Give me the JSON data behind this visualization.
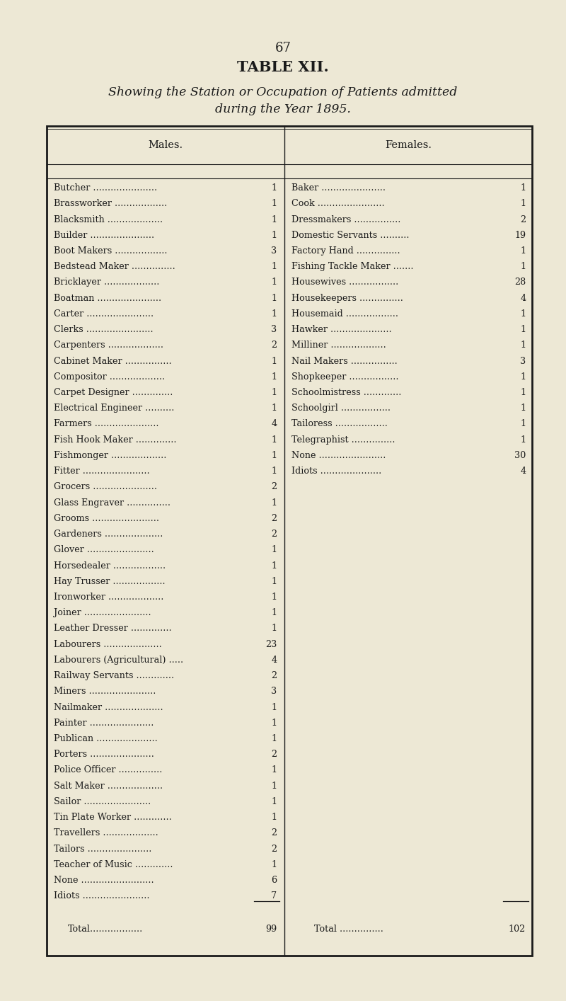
{
  "page_number": "67",
  "title": "TABLE XII.",
  "subtitle_line1": "Showing the Station or Occupation of Patients admitted",
  "subtitle_line2": "during the Year 1895.",
  "males_header": "Males.",
  "females_header": "Females.",
  "males": [
    [
      "Butcher",
      "1"
    ],
    [
      "Brassworker",
      "1"
    ],
    [
      "Blacksmith",
      "1"
    ],
    [
      "Builder",
      "1"
    ],
    [
      "Boot Makers",
      "3"
    ],
    [
      "Bedstead Maker",
      "1"
    ],
    [
      "Bricklayer",
      "1"
    ],
    [
      "Boatman",
      "1"
    ],
    [
      "Carter",
      "1"
    ],
    [
      "Clerks",
      "3"
    ],
    [
      "Carpenters",
      "2"
    ],
    [
      "Cabinet Maker",
      "1"
    ],
    [
      "Compositor",
      "1"
    ],
    [
      "Carpet Designer",
      "1"
    ],
    [
      "Electrical Engineer",
      "1"
    ],
    [
      "Farmers",
      "4"
    ],
    [
      "Fish Hook Maker",
      "1"
    ],
    [
      "Fishmonger",
      "1"
    ],
    [
      "Fitter",
      "1"
    ],
    [
      "Grocers",
      "2"
    ],
    [
      "Glass Engraver",
      "1"
    ],
    [
      "Grooms",
      "2"
    ],
    [
      "Gardeners",
      "2"
    ],
    [
      "Glover",
      "1"
    ],
    [
      "Horsedealer",
      "1"
    ],
    [
      "Hay Trusser",
      "1"
    ],
    [
      "Ironworker",
      "1"
    ],
    [
      "Joiner",
      "1"
    ],
    [
      "Leather Dresser",
      "1"
    ],
    [
      "Labourers",
      "23"
    ],
    [
      "Labourers (Agricultural)",
      "4"
    ],
    [
      "Railway Servants",
      "2"
    ],
    [
      "Miners",
      "3"
    ],
    [
      "Nailmaker",
      "1"
    ],
    [
      "Painter",
      "1"
    ],
    [
      "Publican",
      "1"
    ],
    [
      "Porters",
      "2"
    ],
    [
      "Police Officer",
      "1"
    ],
    [
      "Salt Maker",
      "1"
    ],
    [
      "Sailor",
      "1"
    ],
    [
      "Tin Plate Worker",
      "1"
    ],
    [
      "Travellers",
      "2"
    ],
    [
      "Tailors",
      "2"
    ],
    [
      "Teacher of Music",
      "1"
    ],
    [
      "None",
      "6"
    ],
    [
      "Idiots",
      "7"
    ]
  ],
  "males_total": "99",
  "females": [
    [
      "Baker",
      "1"
    ],
    [
      "Cook",
      "1"
    ],
    [
      "Dressmakers",
      "2"
    ],
    [
      "Domestic Servants",
      "19"
    ],
    [
      "Factory Hand",
      "1"
    ],
    [
      "Fishing Tackle Maker",
      "1"
    ],
    [
      "Housewives",
      "28"
    ],
    [
      "Housekeepers",
      "4"
    ],
    [
      "Housemaid",
      "1"
    ],
    [
      "Hawker",
      "1"
    ],
    [
      "Milliner",
      "1"
    ],
    [
      "Nail Makers",
      "3"
    ],
    [
      "Shopkeeper",
      "1"
    ],
    [
      "Schoolmistress",
      "1"
    ],
    [
      "Schoolgirl",
      "1"
    ],
    [
      "Tailoress",
      "1"
    ],
    [
      "Telegraphist",
      "1"
    ],
    [
      "None",
      "30"
    ],
    [
      "Idiots",
      "4"
    ]
  ],
  "females_total": "102",
  "bg_color": "#ede8d5",
  "text_color": "#1a1a1a",
  "font_size_body": 9.2,
  "font_size_header": 10.5,
  "font_size_title": 15,
  "font_size_subtitle": 12.5,
  "font_size_page": 13,
  "fig_width": 8.0,
  "fig_height": 14.14,
  "dpi": 100
}
